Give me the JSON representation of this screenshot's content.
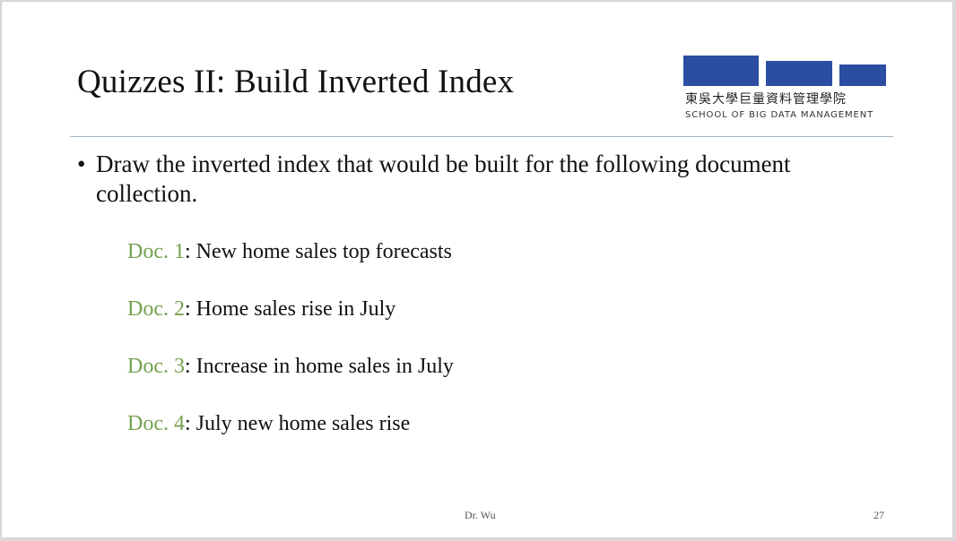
{
  "slide": {
    "title": "Quizzes II: Build Inverted Index",
    "logo": {
      "chinese_name": "東吳大學巨量資料管理學院",
      "english_name": "SCHOOL OF BIG DATA MANAGEMENT",
      "bar_color": "#2b4ea3"
    },
    "bullet": {
      "symbol": "•",
      "text": "Draw the inverted index that would be built for the following document collection."
    },
    "documents": [
      {
        "label": "Doc. 1",
        "text": ": New home sales top forecasts"
      },
      {
        "label": "Doc. 2",
        "text": ": Home sales rise in July"
      },
      {
        "label": "Doc. 3",
        "text": ": Increase in home sales in July"
      },
      {
        "label": "Doc. 4",
        "text": ": July new home sales rise"
      }
    ],
    "label_color": "#74a14f",
    "footer": {
      "author": "Dr. Wu",
      "page_number": "27"
    }
  }
}
